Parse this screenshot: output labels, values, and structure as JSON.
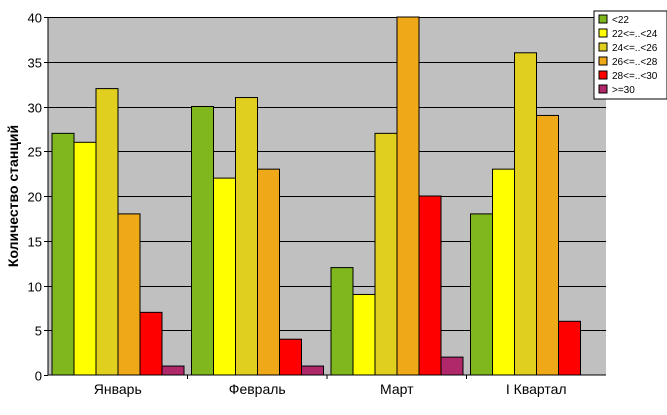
{
  "chart_data": {
    "type": "bar",
    "title": "",
    "xlabel": "",
    "ylabel": "Количество станций",
    "ylim": [
      0,
      40
    ],
    "yticks": [
      0,
      5,
      10,
      15,
      20,
      25,
      30,
      35,
      40
    ],
    "grid": true,
    "legend_position": "top-right",
    "plot_background": "#c0c0c0",
    "categories": [
      "Январь",
      "Февраль",
      "Март",
      "I Квартал"
    ],
    "series": [
      {
        "name": "<22",
        "color": "#7fb71c",
        "values": [
          27,
          30,
          12,
          18
        ]
      },
      {
        "name": "22<=..<24",
        "color": "#ffff00",
        "values": [
          26,
          22,
          9,
          23
        ]
      },
      {
        "name": "24<=..<26",
        "color": "#e0cf1f",
        "values": [
          32,
          31,
          27,
          36
        ]
      },
      {
        "name": "26<=..<28",
        "color": "#efa818",
        "values": [
          18,
          23,
          40,
          29
        ]
      },
      {
        "name": "28<=..<30",
        "color": "#ff0000",
        "values": [
          7,
          4,
          20,
          6
        ]
      },
      {
        "name": ">=30",
        "color": "#b0286a",
        "values": [
          1,
          1,
          2,
          0
        ]
      }
    ]
  }
}
